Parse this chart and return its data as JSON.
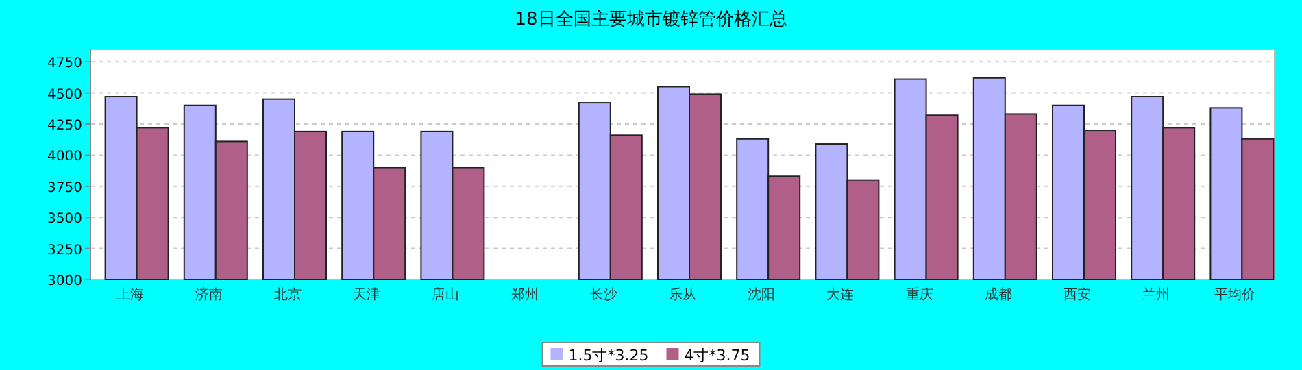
{
  "chart_data": {
    "type": "bar",
    "title": "18日全国主要城市镀锌管价格汇总",
    "categories": [
      "上海",
      "济南",
      "北京",
      "天津",
      "唐山",
      "郑州",
      "长沙",
      "乐从",
      "沈阳",
      "大连",
      "重庆",
      "成都",
      "西安",
      "兰州",
      "平均价"
    ],
    "series": [
      {
        "name": "1.5寸*3.25",
        "color": "#b3b3ff",
        "values": [
          4470,
          4400,
          4450,
          4190,
          4190,
          null,
          4420,
          4550,
          4130,
          4090,
          4610,
          4620,
          4400,
          4470,
          4380
        ]
      },
      {
        "name": "4寸*3.75",
        "color": "#b06088",
        "values": [
          4220,
          4110,
          4190,
          3900,
          3900,
          null,
          4160,
          4490,
          3830,
          3800,
          4320,
          4330,
          4200,
          4220,
          4130
        ]
      }
    ],
    "ylim": [
      3000,
      4850
    ],
    "yticks": [
      3000,
      3250,
      3500,
      3750,
      4000,
      4250,
      4500,
      4750
    ],
    "grid": "y",
    "legend": "bottom"
  }
}
